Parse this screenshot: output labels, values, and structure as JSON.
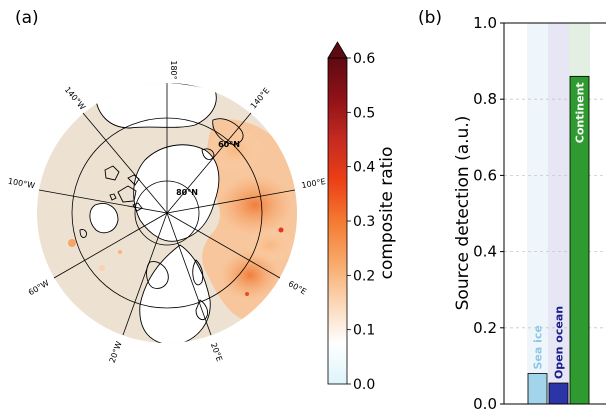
{
  "panel_a": {
    "label": "(a)",
    "longitude_labels": [
      "180°",
      "140°E",
      "100°E",
      "60°E",
      "20°E",
      "20°W",
      "60°W",
      "100°W",
      "140°W"
    ],
    "latitude_labels": [
      "60°N",
      "80°N"
    ],
    "colorbar": {
      "label": "composite ratio",
      "ticks": [
        "0.0",
        "0.1",
        "0.2",
        "0.3",
        "0.4",
        "0.5",
        "0.6"
      ],
      "colors": [
        "#ddf4fb",
        "#ffffff",
        "#fbd6b5",
        "#f8a868",
        "#f47a31",
        "#ec3f16",
        "#c52a21",
        "#8f1218",
        "#5e0a12"
      ]
    },
    "colors": {
      "land": "#ede1d2",
      "ocean": "#ffffff",
      "coast": "#000000",
      "grid": "#000000"
    }
  },
  "panel_b": {
    "label": "(b)",
    "chart_data": {
      "type": "bar",
      "categories": [
        "Sea ice",
        "Open ocean",
        "Continent"
      ],
      "values": [
        0.08,
        0.055,
        0.86
      ],
      "colors": [
        "#a2d4ec",
        "#2c35a8",
        "#2f9a2f"
      ],
      "background_colors": [
        "#eef6fb",
        "#e6e6f4",
        "#e3efe3"
      ],
      "label_colors": [
        "#8ec8e6",
        "#1a1f8c",
        "#ffffff"
      ],
      "ylabel": "Source detection (a.u.)",
      "ylim": [
        0,
        1.0
      ],
      "yticks": [
        "0.0",
        "0.2",
        "0.4",
        "0.6",
        "0.8",
        "1.0"
      ],
      "grid": true
    }
  }
}
